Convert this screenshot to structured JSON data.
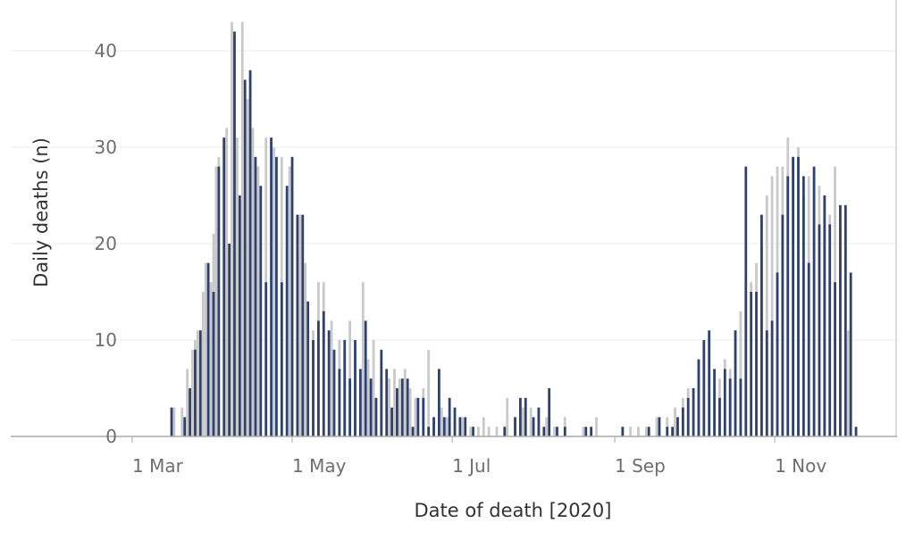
{
  "chart_data": {
    "type": "bar",
    "xlabel": "Date of death [2020]",
    "ylabel": "Daily deaths (n)",
    "ylim": [
      0,
      45
    ],
    "yticks": [
      0,
      10,
      20,
      30,
      40
    ],
    "x_axis_ticks": [
      {
        "date": "2020-03-01",
        "label": "1 Mar"
      },
      {
        "date": "2020-05-01",
        "label": "1 May"
      },
      {
        "date": "2020-07-01",
        "label": "1 Jul"
      },
      {
        "date": "2020-09-01",
        "label": "1 Sep"
      },
      {
        "date": "2020-11-01",
        "label": "1 Nov"
      }
    ],
    "grid": "horizontal",
    "series": [
      {
        "color": "#c9c9c9",
        "points": [
          [
            "2020-03-17",
            3
          ],
          [
            "2020-03-20",
            3
          ],
          [
            "2020-03-22",
            7
          ],
          [
            "2020-03-24",
            9
          ],
          [
            "2020-03-25",
            10
          ],
          [
            "2020-03-26",
            11
          ],
          [
            "2020-03-28",
            15
          ],
          [
            "2020-03-29",
            18
          ],
          [
            "2020-03-31",
            16
          ],
          [
            "2020-04-01",
            21
          ],
          [
            "2020-04-02",
            28
          ],
          [
            "2020-04-03",
            29
          ],
          [
            "2020-04-05",
            31
          ],
          [
            "2020-04-06",
            32
          ],
          [
            "2020-04-08",
            43
          ],
          [
            "2020-04-10",
            31
          ],
          [
            "2020-04-12",
            43
          ],
          [
            "2020-04-14",
            35
          ],
          [
            "2020-04-16",
            32
          ],
          [
            "2020-04-18",
            28
          ],
          [
            "2020-04-21",
            31
          ],
          [
            "2020-04-24",
            30
          ],
          [
            "2020-04-27",
            29
          ],
          [
            "2020-04-30",
            28
          ],
          [
            "2020-05-04",
            23
          ],
          [
            "2020-05-06",
            18
          ],
          [
            "2020-05-09",
            11
          ],
          [
            "2020-05-11",
            16
          ],
          [
            "2020-05-13",
            16
          ],
          [
            "2020-05-16",
            12
          ],
          [
            "2020-05-19",
            10
          ],
          [
            "2020-05-21",
            9
          ],
          [
            "2020-05-23",
            12
          ],
          [
            "2020-05-25",
            9
          ],
          [
            "2020-05-28",
            16
          ],
          [
            "2020-05-30",
            8
          ],
          [
            "2020-06-01",
            10
          ],
          [
            "2020-06-04",
            6
          ],
          [
            "2020-06-07",
            6
          ],
          [
            "2020-06-09",
            7
          ],
          [
            "2020-06-11",
            6
          ],
          [
            "2020-06-13",
            7
          ],
          [
            "2020-06-15",
            5
          ],
          [
            "2020-06-17",
            4
          ],
          [
            "2020-06-20",
            5
          ],
          [
            "2020-06-22",
            9
          ],
          [
            "2020-06-24",
            2
          ],
          [
            "2020-06-27",
            3
          ],
          [
            "2020-06-29",
            2
          ],
          [
            "2020-07-02",
            2
          ],
          [
            "2020-07-05",
            2
          ],
          [
            "2020-07-08",
            1
          ],
          [
            "2020-07-11",
            1
          ],
          [
            "2020-07-13",
            2
          ],
          [
            "2020-07-15",
            1
          ],
          [
            "2020-07-18",
            1
          ],
          [
            "2020-07-22",
            4
          ],
          [
            "2020-07-25",
            2
          ],
          [
            "2020-07-28",
            3
          ],
          [
            "2020-07-31",
            3
          ],
          [
            "2020-08-03",
            3
          ],
          [
            "2020-08-06",
            2
          ],
          [
            "2020-08-09",
            1
          ],
          [
            "2020-08-13",
            2
          ],
          [
            "2020-08-20",
            1
          ],
          [
            "2020-08-25",
            2
          ],
          [
            "2020-09-04",
            1
          ],
          [
            "2020-09-07",
            1
          ],
          [
            "2020-09-10",
            1
          ],
          [
            "2020-09-13",
            1
          ],
          [
            "2020-09-17",
            2
          ],
          [
            "2020-09-21",
            2
          ],
          [
            "2020-09-24",
            3
          ],
          [
            "2020-09-27",
            4
          ],
          [
            "2020-09-29",
            5
          ],
          [
            "2020-10-01",
            5
          ],
          [
            "2020-10-03",
            8
          ],
          [
            "2020-10-05",
            9
          ],
          [
            "2020-10-07",
            10
          ],
          [
            "2020-10-09",
            5
          ],
          [
            "2020-10-11",
            6
          ],
          [
            "2020-10-13",
            8
          ],
          [
            "2020-10-15",
            7
          ],
          [
            "2020-10-17",
            11
          ],
          [
            "2020-10-19",
            13
          ],
          [
            "2020-10-21",
            15
          ],
          [
            "2020-10-23",
            16
          ],
          [
            "2020-10-25",
            18
          ],
          [
            "2020-10-27",
            20
          ],
          [
            "2020-10-29",
            25
          ],
          [
            "2020-10-31",
            27
          ],
          [
            "2020-11-02",
            28
          ],
          [
            "2020-11-04",
            28
          ],
          [
            "2020-11-06",
            31
          ],
          [
            "2020-11-08",
            29
          ],
          [
            "2020-11-10",
            30
          ],
          [
            "2020-11-12",
            25
          ],
          [
            "2020-11-14",
            27
          ],
          [
            "2020-11-16",
            27
          ],
          [
            "2020-11-18",
            26
          ],
          [
            "2020-11-20",
            25
          ],
          [
            "2020-11-22",
            23
          ],
          [
            "2020-11-24",
            28
          ],
          [
            "2020-11-26",
            22
          ],
          [
            "2020-11-29",
            11
          ]
        ]
      },
      {
        "color": "#2e4272",
        "points": [
          [
            "2020-03-16",
            3
          ],
          [
            "2020-03-21",
            2
          ],
          [
            "2020-03-23",
            5
          ],
          [
            "2020-03-25",
            9
          ],
          [
            "2020-03-27",
            11
          ],
          [
            "2020-03-30",
            18
          ],
          [
            "2020-04-01",
            15
          ],
          [
            "2020-04-03",
            28
          ],
          [
            "2020-04-05",
            31
          ],
          [
            "2020-04-07",
            20
          ],
          [
            "2020-04-09",
            42
          ],
          [
            "2020-04-11",
            25
          ],
          [
            "2020-04-13",
            37
          ],
          [
            "2020-04-15",
            38
          ],
          [
            "2020-04-17",
            29
          ],
          [
            "2020-04-19",
            26
          ],
          [
            "2020-04-21",
            16
          ],
          [
            "2020-04-23",
            31
          ],
          [
            "2020-04-25",
            29
          ],
          [
            "2020-04-27",
            16
          ],
          [
            "2020-04-29",
            26
          ],
          [
            "2020-05-01",
            29
          ],
          [
            "2020-05-03",
            23
          ],
          [
            "2020-05-05",
            23
          ],
          [
            "2020-05-07",
            14
          ],
          [
            "2020-05-09",
            10
          ],
          [
            "2020-05-11",
            12
          ],
          [
            "2020-05-13",
            13
          ],
          [
            "2020-05-15",
            11
          ],
          [
            "2020-05-17",
            9
          ],
          [
            "2020-05-19",
            7
          ],
          [
            "2020-05-21",
            10
          ],
          [
            "2020-05-23",
            6
          ],
          [
            "2020-05-25",
            10
          ],
          [
            "2020-05-27",
            7
          ],
          [
            "2020-05-29",
            12
          ],
          [
            "2020-05-31",
            6
          ],
          [
            "2020-06-02",
            4
          ],
          [
            "2020-06-04",
            9
          ],
          [
            "2020-06-06",
            7
          ],
          [
            "2020-06-08",
            3
          ],
          [
            "2020-06-10",
            5
          ],
          [
            "2020-06-12",
            6
          ],
          [
            "2020-06-14",
            6
          ],
          [
            "2020-06-16",
            1
          ],
          [
            "2020-06-18",
            4
          ],
          [
            "2020-06-20",
            4
          ],
          [
            "2020-06-22",
            1
          ],
          [
            "2020-06-24",
            2
          ],
          [
            "2020-06-26",
            7
          ],
          [
            "2020-06-28",
            2
          ],
          [
            "2020-06-30",
            4
          ],
          [
            "2020-07-02",
            3
          ],
          [
            "2020-07-04",
            2
          ],
          [
            "2020-07-06",
            2
          ],
          [
            "2020-07-09",
            1
          ],
          [
            "2020-07-21",
            1
          ],
          [
            "2020-07-25",
            2
          ],
          [
            "2020-07-27",
            4
          ],
          [
            "2020-07-29",
            4
          ],
          [
            "2020-08-01",
            2
          ],
          [
            "2020-08-03",
            3
          ],
          [
            "2020-08-05",
            1
          ],
          [
            "2020-08-07",
            5
          ],
          [
            "2020-08-10",
            1
          ],
          [
            "2020-08-13",
            1
          ],
          [
            "2020-08-21",
            1
          ],
          [
            "2020-08-23",
            1
          ],
          [
            "2020-09-04",
            1
          ],
          [
            "2020-09-14",
            1
          ],
          [
            "2020-09-18",
            2
          ],
          [
            "2020-09-21",
            1
          ],
          [
            "2020-09-23",
            1
          ],
          [
            "2020-09-25",
            2
          ],
          [
            "2020-09-27",
            3
          ],
          [
            "2020-09-29",
            4
          ],
          [
            "2020-10-01",
            5
          ],
          [
            "2020-10-03",
            8
          ],
          [
            "2020-10-05",
            10
          ],
          [
            "2020-10-07",
            11
          ],
          [
            "2020-10-09",
            7
          ],
          [
            "2020-10-11",
            4
          ],
          [
            "2020-10-13",
            7
          ],
          [
            "2020-10-15",
            6
          ],
          [
            "2020-10-17",
            11
          ],
          [
            "2020-10-19",
            6
          ],
          [
            "2020-10-21",
            28
          ],
          [
            "2020-10-23",
            15
          ],
          [
            "2020-10-25",
            15
          ],
          [
            "2020-10-27",
            23
          ],
          [
            "2020-10-29",
            11
          ],
          [
            "2020-10-31",
            12
          ],
          [
            "2020-11-02",
            17
          ],
          [
            "2020-11-04",
            23
          ],
          [
            "2020-11-06",
            27
          ],
          [
            "2020-11-08",
            29
          ],
          [
            "2020-11-10",
            29
          ],
          [
            "2020-11-12",
            27
          ],
          [
            "2020-11-14",
            18
          ],
          [
            "2020-11-16",
            28
          ],
          [
            "2020-11-18",
            22
          ],
          [
            "2020-11-20",
            25
          ],
          [
            "2020-11-22",
            22
          ],
          [
            "2020-11-24",
            16
          ],
          [
            "2020-11-26",
            24
          ],
          [
            "2020-11-28",
            24
          ],
          [
            "2020-11-30",
            17
          ],
          [
            "2020-12-02",
            1
          ]
        ]
      }
    ]
  }
}
